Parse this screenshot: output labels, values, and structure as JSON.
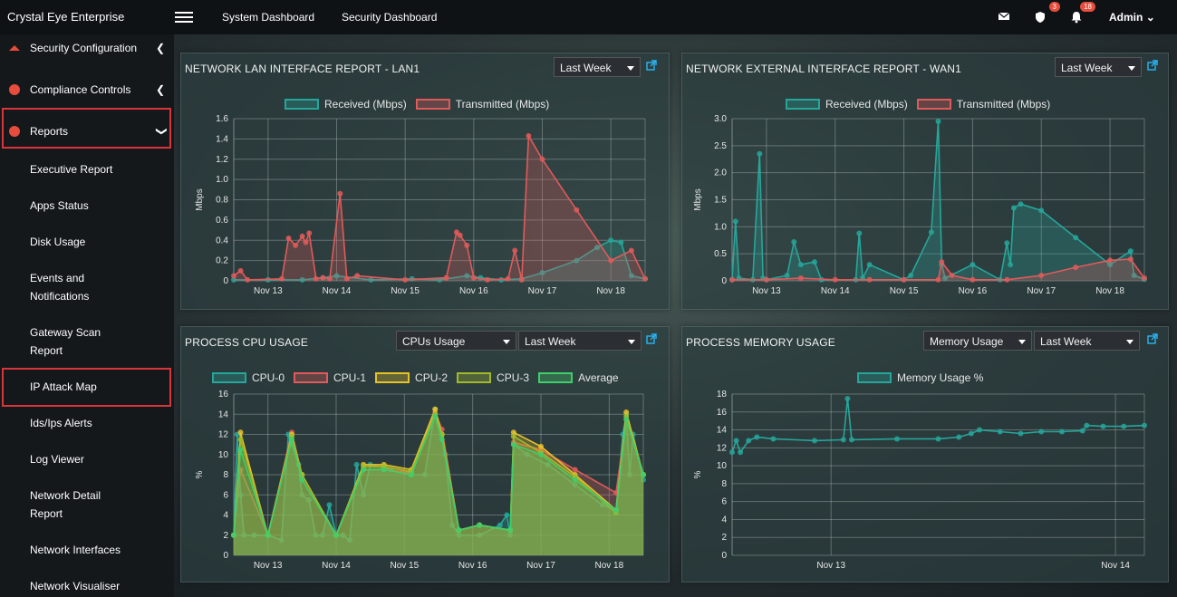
{
  "topbar": {
    "brand": "Crystal Eye Enterprise",
    "nav": [
      "System Dashboard",
      "Security Dashboard"
    ],
    "shield_badge": "3",
    "bell_badge": "18",
    "user": "Admin"
  },
  "sidebar": {
    "items": [
      {
        "label": "Security Configuration"
      },
      {
        "label": "Compliance Controls"
      },
      {
        "label": "Reports"
      }
    ],
    "sub_items": [
      [
        "Executive Report"
      ],
      [
        "Apps Status"
      ],
      [
        "Disk Usage"
      ],
      [
        "Events and",
        "Notifications"
      ],
      [
        "Gateway Scan",
        "Report"
      ],
      [
        "IP Attack Map"
      ],
      [
        "Ids/Ips Alerts"
      ],
      [
        "Log Viewer"
      ],
      [
        "Network Detail",
        "Report"
      ],
      [
        "Network Interfaces"
      ],
      [
        "Network Visualiser"
      ]
    ]
  },
  "colors": {
    "received": "#26a69a",
    "transmitted": "#e05a5a",
    "cpu0": "#26a69a",
    "cpu1": "#e05a5a",
    "cpu2": "#e6c229",
    "cpu3": "#a3b82a",
    "average": "#3ecf6a",
    "highlight": "#d9343a"
  },
  "panels": {
    "lan": {
      "title": "NETWORK LAN INTERFACE REPORT - LAN1",
      "range": "Last Week"
    },
    "wan": {
      "title": "NETWORK EXTERNAL INTERFACE REPORT - WAN1",
      "range": "Last Week"
    },
    "cpu": {
      "title": "PROCESS CPU USAGE",
      "metric": "CPUs Usage",
      "range": "Last Week"
    },
    "mem": {
      "title": "PROCESS MEMORY USAGE",
      "metric": "Memory Usage",
      "range": "Last Week"
    }
  },
  "chart_data": [
    {
      "id": "lan",
      "type": "area",
      "ylabel": "Mbps",
      "ylim": [
        0,
        1.6
      ],
      "yticks": [
        "0",
        "0.2",
        "0.4",
        "0.6",
        "0.8",
        "1.0",
        "1.2",
        "1.4",
        "1.6"
      ],
      "xticks": [
        "Nov 13",
        "Nov 14",
        "Nov 15",
        "Nov 16",
        "Nov 17",
        "Nov 18"
      ],
      "xtick_pos": [
        0.5,
        1.5,
        2.5,
        3.5,
        4.5,
        5.5
      ],
      "xmax": 6.0,
      "series": [
        {
          "name": "Received (Mbps)",
          "x": [
            0,
            0.5,
            1.0,
            1.3,
            1.5,
            2.0,
            2.6,
            3.0,
            3.4,
            3.6,
            3.9,
            4.2,
            4.5,
            5.0,
            5.3,
            5.5,
            5.65,
            5.8,
            6.0
          ],
          "y": [
            0.01,
            0.01,
            0.01,
            0.03,
            0.05,
            0.01,
            0.02,
            0.01,
            0.05,
            0.03,
            0.01,
            0.02,
            0.08,
            0.2,
            0.33,
            0.4,
            0.38,
            0.05,
            0.02
          ]
        },
        {
          "name": "Transmitted (Mbps)",
          "x": [
            0,
            0.1,
            0.2,
            0.7,
            0.8,
            0.9,
            1.0,
            1.05,
            1.1,
            1.2,
            1.3,
            1.4,
            1.55,
            1.65,
            1.8,
            2.5,
            3.1,
            3.25,
            3.3,
            3.4,
            3.5,
            3.7,
            4.0,
            4.1,
            4.2,
            4.3,
            4.5,
            5.0,
            5.5,
            5.8,
            6.0
          ],
          "y": [
            0.05,
            0.1,
            0.01,
            0.02,
            0.42,
            0.35,
            0.44,
            0.38,
            0.47,
            0.02,
            0.03,
            0.02,
            0.86,
            0.02,
            0.05,
            0.01,
            0.03,
            0.48,
            0.45,
            0.35,
            0.03,
            0.01,
            0.02,
            0.3,
            0.01,
            1.43,
            1.2,
            0.7,
            0.2,
            0.3,
            0.02
          ]
        }
      ]
    },
    {
      "id": "wan",
      "type": "area",
      "ylabel": "Mbps",
      "ylim": [
        0,
        3.0
      ],
      "yticks": [
        "0",
        "0.5",
        "1.0",
        "1.5",
        "2.0",
        "2.5",
        "3.0"
      ],
      "xticks": [
        "Nov 13",
        "Nov 14",
        "Nov 15",
        "Nov 16",
        "Nov 17",
        "Nov 18"
      ],
      "xtick_pos": [
        0.5,
        1.5,
        2.5,
        3.5,
        4.5,
        5.5
      ],
      "xmax": 6.0,
      "series": [
        {
          "name": "Received (Mbps)",
          "x": [
            0,
            0.05,
            0.1,
            0.3,
            0.4,
            0.45,
            0.5,
            0.8,
            0.9,
            1.0,
            1.2,
            1.3,
            1.8,
            1.85,
            1.9,
            2.0,
            2.5,
            2.6,
            2.9,
            3.0,
            3.05,
            3.1,
            3.5,
            3.9,
            4.0,
            4.05,
            4.1,
            4.2,
            4.5,
            5.0,
            5.5,
            5.8,
            5.85,
            6.0
          ],
          "y": [
            0.02,
            1.1,
            0.05,
            0.02,
            2.35,
            0.05,
            0.02,
            0.1,
            0.72,
            0.3,
            0.35,
            0.02,
            0.02,
            0.88,
            0.05,
            0.3,
            0.02,
            0.1,
            0.9,
            2.95,
            0.3,
            0.05,
            0.3,
            0.02,
            0.7,
            0.3,
            1.35,
            1.42,
            1.3,
            0.8,
            0.3,
            0.55,
            0.1,
            0.03
          ]
        },
        {
          "name": "Transmitted (Mbps)",
          "x": [
            0,
            0.5,
            1.0,
            1.5,
            2.0,
            2.5,
            3.0,
            3.05,
            3.2,
            3.5,
            4.0,
            4.5,
            5.0,
            5.5,
            5.8,
            6.0
          ],
          "y": [
            0.02,
            0.02,
            0.05,
            0.02,
            0.02,
            0.02,
            0.02,
            0.35,
            0.1,
            0.02,
            0.02,
            0.1,
            0.25,
            0.38,
            0.4,
            0.05
          ]
        }
      ]
    },
    {
      "id": "cpu",
      "type": "area",
      "ylabel": "%",
      "ylim": [
        0,
        16
      ],
      "yticks": [
        "0",
        "2",
        "4",
        "6",
        "8",
        "10",
        "12",
        "14",
        "16"
      ],
      "xticks": [
        "Nov 13",
        "Nov 14",
        "Nov 15",
        "Nov 16",
        "Nov 17",
        "Nov 18"
      ],
      "xtick_pos": [
        0.5,
        1.5,
        2.5,
        3.5,
        4.5,
        5.5
      ],
      "xmax": 6.0,
      "series": [
        {
          "name": "CPU-0",
          "x": [
            0,
            0.05,
            0.1,
            0.15,
            0.3,
            0.5,
            0.7,
            0.8,
            0.85,
            0.95,
            1.0,
            1.1,
            1.2,
            1.3,
            1.4,
            1.5,
            1.6,
            1.7,
            1.8,
            1.9,
            2.0,
            2.3,
            2.6,
            2.8,
            2.95,
            3.05,
            3.1,
            3.2,
            3.3,
            3.6,
            3.9,
            4.0,
            4.05,
            4.1,
            4.3,
            4.6,
            5.0,
            5.4,
            5.6,
            5.7,
            5.75,
            5.8,
            5.85,
            6.0
          ],
          "y": [
            2,
            12,
            6,
            2,
            2,
            2,
            1.5,
            12,
            11,
            9,
            6,
            5.5,
            2,
            2,
            5,
            2,
            2,
            1.5,
            9,
            6,
            9,
            8.5,
            8,
            8,
            14.5,
            12,
            10,
            3,
            2,
            2,
            3,
            4,
            2,
            11,
            10,
            9,
            7,
            5,
            4.5,
            12,
            14,
            8,
            12,
            7.5
          ]
        },
        {
          "name": "CPU-1",
          "x": [
            0,
            0.1,
            0.5,
            0.85,
            1.0,
            1.5,
            1.9,
            2.2,
            2.6,
            2.95,
            3.05,
            3.3,
            3.6,
            4.05,
            4.1,
            4.5,
            5.0,
            5.6,
            5.75,
            6.0
          ],
          "y": [
            2,
            8.5,
            2,
            12.2,
            8,
            2,
            8.5,
            8.5,
            8.2,
            14.2,
            12.5,
            2.5,
            3,
            2.5,
            11.2,
            10.5,
            8.5,
            6.2,
            13.5,
            8
          ]
        },
        {
          "name": "CPU-2",
          "x": [
            0,
            0.1,
            0.5,
            0.85,
            1.0,
            1.5,
            1.9,
            2.2,
            2.6,
            2.95,
            3.05,
            3.3,
            3.6,
            4.05,
            4.1,
            4.5,
            5.0,
            5.6,
            5.75,
            6.0
          ],
          "y": [
            2,
            12.2,
            2,
            12,
            8,
            2,
            9,
            9,
            8.5,
            14.5,
            12,
            2.5,
            3,
            2.5,
            12.2,
            10.8,
            8,
            4.5,
            14.2,
            8
          ]
        },
        {
          "name": "CPU-3",
          "x": [
            0,
            0.1,
            0.5,
            0.85,
            1.0,
            1.5,
            1.9,
            2.2,
            2.6,
            2.95,
            3.05,
            3.3,
            3.6,
            4.05,
            4.1,
            4.5,
            5.0,
            5.6,
            5.75,
            6.0
          ],
          "y": [
            2,
            11.5,
            2,
            11.8,
            8,
            2,
            8.8,
            8.8,
            8.3,
            14,
            12,
            2.5,
            3,
            2.5,
            11.8,
            10.2,
            7.8,
            4.2,
            13.8,
            8
          ]
        },
        {
          "name": "Average",
          "x": [
            0,
            0.1,
            0.5,
            0.85,
            1.0,
            1.5,
            1.9,
            2.2,
            2.6,
            2.95,
            3.05,
            3.3,
            3.6,
            4.05,
            4.1,
            4.5,
            5.0,
            5.6,
            5.75,
            6.0
          ],
          "y": [
            2,
            10.5,
            2,
            11.5,
            7.5,
            2,
            8.5,
            8.5,
            8,
            13.8,
            11.5,
            2.5,
            3,
            2.5,
            11,
            10,
            7.5,
            4.5,
            13.5,
            8
          ]
        }
      ]
    },
    {
      "id": "mem",
      "type": "line",
      "ylabel": "%",
      "ylim": [
        0,
        18
      ],
      "yticks": [
        "0",
        "2",
        "4",
        "6",
        "8",
        "10",
        "12",
        "14",
        "16",
        "18"
      ],
      "xticks": [
        "Nov 13",
        "Nov 14"
      ],
      "xtick_pos": [
        0.24,
        0.93
      ],
      "xmax": 1.0,
      "series": [
        {
          "name": "Memory Usage %",
          "x": [
            0,
            0.01,
            0.02,
            0.04,
            0.06,
            0.1,
            0.2,
            0.27,
            0.28,
            0.29,
            0.4,
            0.5,
            0.55,
            0.58,
            0.6,
            0.65,
            0.7,
            0.75,
            0.8,
            0.85,
            0.86,
            0.9,
            0.95,
            1.0
          ],
          "y": [
            11.5,
            12.8,
            11.5,
            12.8,
            13.2,
            13,
            12.8,
            12.9,
            17.5,
            12.9,
            13,
            13,
            13.2,
            13.6,
            14,
            13.8,
            13.6,
            13.8,
            13.8,
            13.9,
            14.5,
            14.4,
            14.4,
            14.5
          ]
        }
      ]
    }
  ]
}
